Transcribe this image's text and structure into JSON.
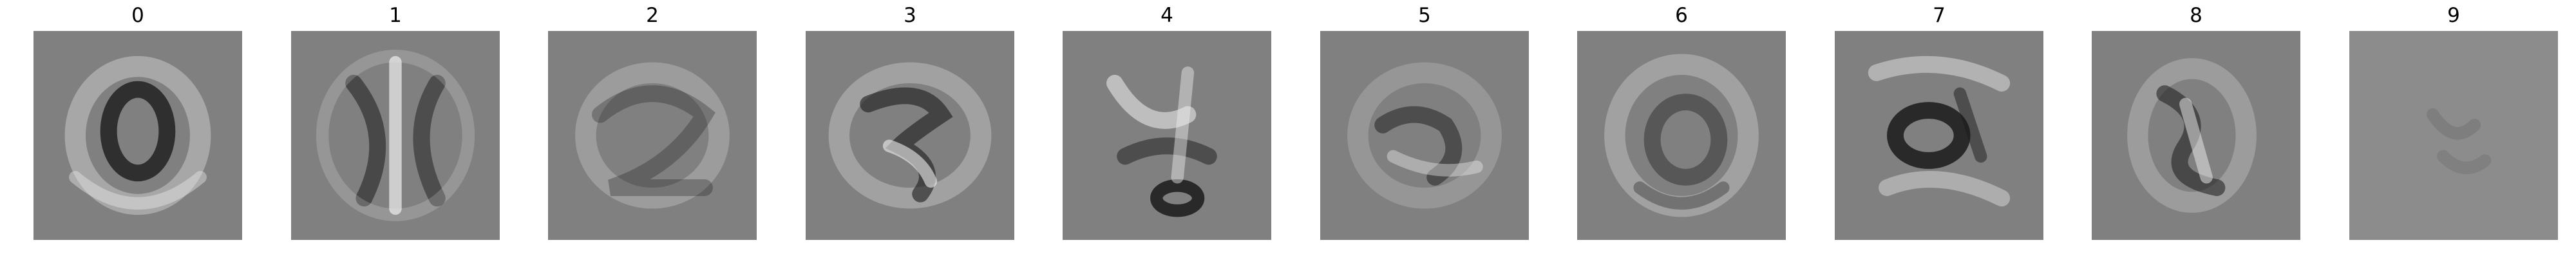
{
  "panels": [
    {
      "label": "0",
      "image_desc": "grey-scale weight image of digit zero pattern"
    },
    {
      "label": "1",
      "image_desc": "grey-scale weight image of digit one pattern"
    },
    {
      "label": "2",
      "image_desc": "grey-scale weight image of digit two pattern"
    },
    {
      "label": "3",
      "image_desc": "grey-scale weight image of digit three pattern"
    },
    {
      "label": "4",
      "image_desc": "grey-scale weight image of digit four pattern"
    },
    {
      "label": "5",
      "image_desc": "grey-scale weight image of digit five pattern"
    },
    {
      "label": "6",
      "image_desc": "grey-scale weight image of digit six pattern"
    },
    {
      "label": "7",
      "image_desc": "grey-scale weight image of digit seven pattern"
    },
    {
      "label": "8",
      "image_desc": "grey-scale weight image of digit eight pattern"
    },
    {
      "label": "9",
      "image_desc": "faint uniform grey weight image"
    }
  ],
  "colors": {
    "background": "#ffffff",
    "tile_base": "#808080",
    "dark": "#1a1a1a",
    "light": "#f0f0f0"
  }
}
